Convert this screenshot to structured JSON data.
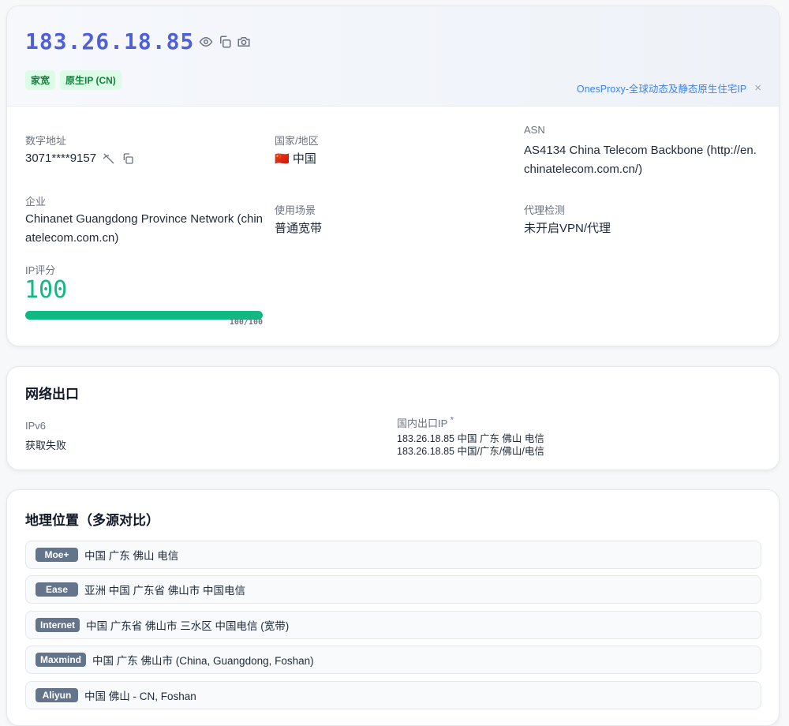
{
  "ip": {
    "address": "183.26.18.85",
    "icons": [
      "eye-icon",
      "copy-icon",
      "camera-icon"
    ],
    "tags": [
      "家宽",
      "原生IP (CN)"
    ]
  },
  "ad": {
    "text": "OnesProxy-全球动态及静态原生住宅IP",
    "close": "×"
  },
  "info": {
    "numeric_label": "数字地址",
    "numeric_value": "3071****9157",
    "org_label": "企业",
    "org_value": "Chinanet Guangdong Province Network (chinatelecom.com.cn)",
    "score_label": "IP评分",
    "score_value": "100",
    "score_text": "100/100",
    "score_fraction": 1.0,
    "score_color": "#10b981",
    "country_label": "国家/地区",
    "country_flag": "🇨🇳",
    "country_value": "中国",
    "usage_label": "使用场景",
    "usage_value": "普通宽带",
    "asn_label": "ASN",
    "asn_value": "AS4134 China Telecom Backbone (http://en.chinatelecom.com.cn/)",
    "proxy_label": "代理检测",
    "proxy_value": "未开启VPN/代理"
  },
  "network": {
    "title": "网络出口",
    "ipv6_label": "IPv6",
    "ipv6_value": "获取失败",
    "domestic_label": "国内出口IP",
    "domestic_mark": "*",
    "domestic_lines": [
      "183.26.18.85 中国 广东 佛山 电信",
      "183.26.18.85 中国/广东/佛山/电信"
    ]
  },
  "geo": {
    "title": "地理位置（多源对比）",
    "rows": [
      {
        "source": "Moe+",
        "value": "中国 广东 佛山 电信"
      },
      {
        "source": "Ease",
        "value": "亚洲 中国 广东省 佛山市 中国电信"
      },
      {
        "source": "Internet",
        "value": "中国 广东省 佛山市 三水区 中国电信 (宽带)"
      },
      {
        "source": "Maxmind",
        "value": "中国 广东 佛山市 (China, Guangdong, Foshan)"
      },
      {
        "source": "Aliyun",
        "value": "中国 佛山 - CN, Foshan"
      }
    ]
  }
}
